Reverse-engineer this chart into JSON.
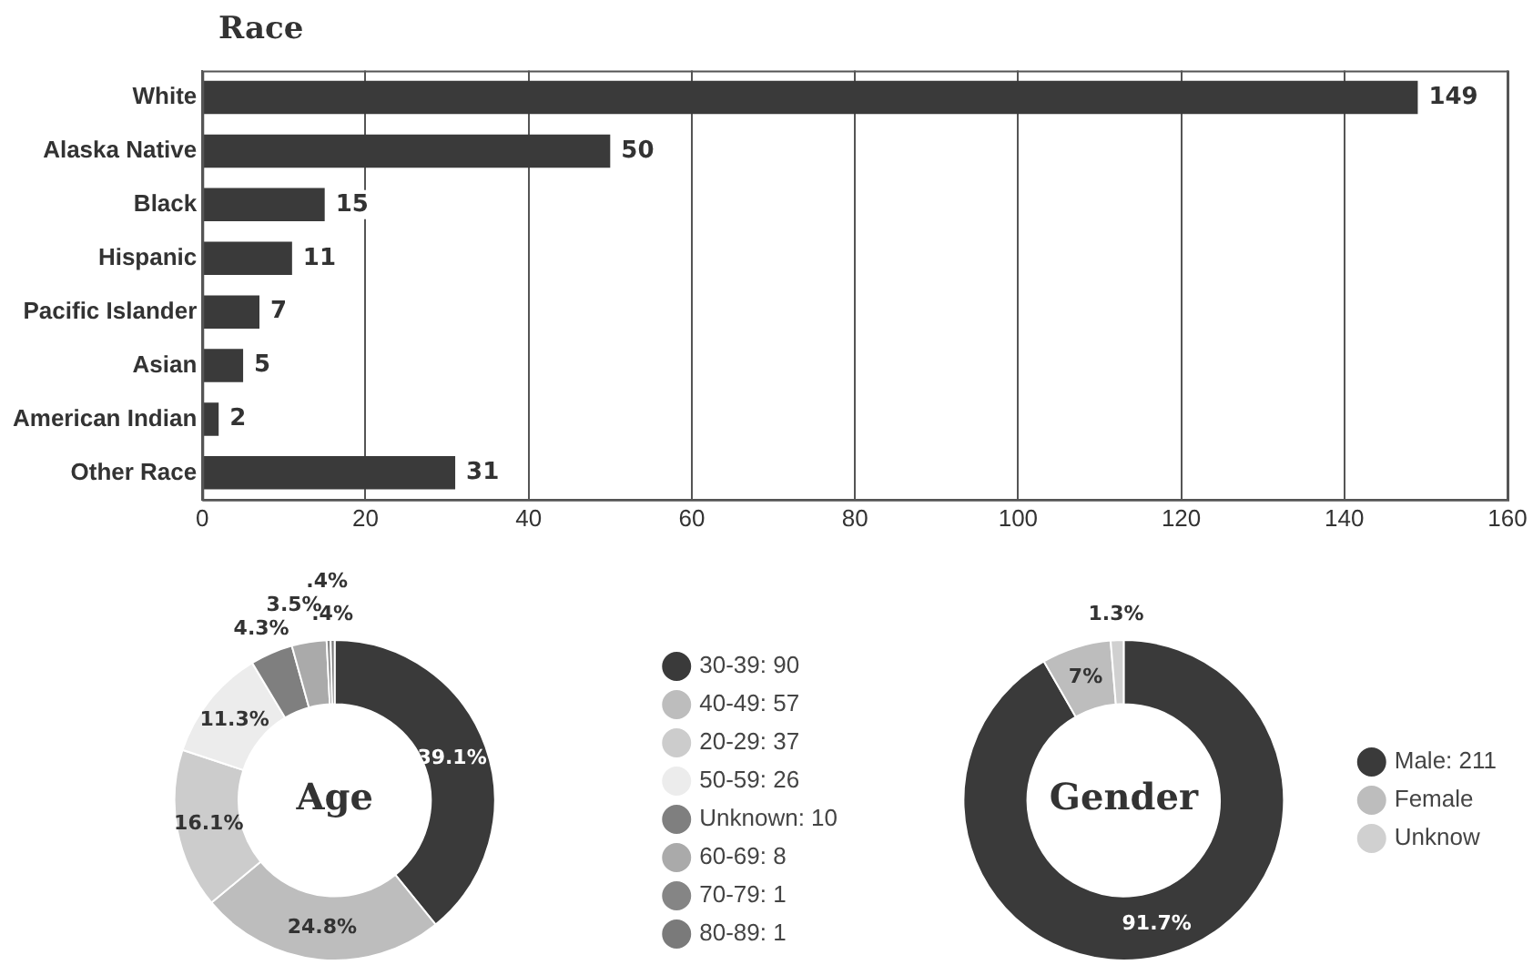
{
  "chart_data": [
    {
      "type": "bar",
      "title": "Race",
      "orientation": "horizontal",
      "categories": [
        "White",
        "Alaska Native",
        "Black",
        "Hispanic",
        "Pacific Islander",
        "Asian",
        "American Indian",
        "Other Race"
      ],
      "values": [
        149,
        50,
        15,
        11,
        7,
        5,
        2,
        31
      ],
      "color": "#3a3a3a",
      "xlim": [
        0,
        160
      ],
      "xticks": [
        0,
        20,
        40,
        60,
        80,
        100,
        120,
        140,
        160
      ],
      "grid": "x",
      "data_labels": true
    },
    {
      "type": "donut",
      "title": "Age",
      "categories": [
        "30-39: 90",
        "40-49: 57",
        "20-29: 37",
        "50-59: 26",
        "Unknown: 10",
        "60-69: 8",
        "70-79: 1",
        "80-89: 1"
      ],
      "values": [
        39.1,
        24.8,
        16.1,
        11.3,
        4.3,
        3.5,
        0.4,
        0.4
      ],
      "colors": [
        "#3a3a3a",
        "#bdbdbd",
        "#cccccc",
        "#ececec",
        "#7f7f7f",
        "#aaaaaa",
        "#858585",
        "#7a7a7a"
      ],
      "value_labels": [
        "39.1%",
        "24.8%",
        "16.1%",
        "11.3%",
        "4.3%",
        "3.5%",
        ".4%",
        ".4%"
      ],
      "legend": "right"
    },
    {
      "type": "donut",
      "title": "Gender",
      "categories": [
        "Male: 211",
        "Female",
        "Unknow"
      ],
      "values": [
        91.7,
        7,
        1.3
      ],
      "colors": [
        "#3a3a3a",
        "#bdbdbd",
        "#d0d0d0"
      ],
      "value_labels": [
        "91.7%",
        "7%",
        "1.3%"
      ],
      "legend": "right"
    }
  ]
}
